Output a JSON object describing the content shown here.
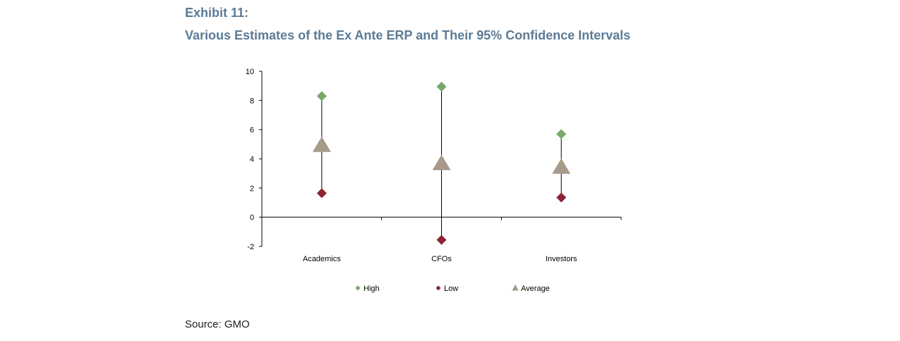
{
  "header": {
    "exhibit": "Exhibit 11:",
    "title": "Various Estimates of the Ex Ante ERP and Their 95% Confidence Intervals"
  },
  "source": "Source: GMO",
  "chart_data": {
    "type": "scatter",
    "categories": [
      "Academics",
      "CFOs",
      "Investors"
    ],
    "yticks": [
      10,
      8,
      6,
      4,
      2,
      0,
      -2
    ],
    "ylim": [
      -2,
      10
    ],
    "series": [
      {
        "name": "High",
        "marker": "diamond",
        "color": "#77a96a",
        "values": [
          8.3,
          8.95,
          5.7
        ]
      },
      {
        "name": "Low",
        "marker": "diamond",
        "color": "#8e2332",
        "values": [
          1.65,
          -1.55,
          1.35
        ]
      },
      {
        "name": "Average",
        "marker": "triangle",
        "color": "#a89a8a",
        "values": [
          4.9,
          3.65,
          3.4
        ]
      }
    ],
    "legend_position": "bottom",
    "grid": false
  }
}
